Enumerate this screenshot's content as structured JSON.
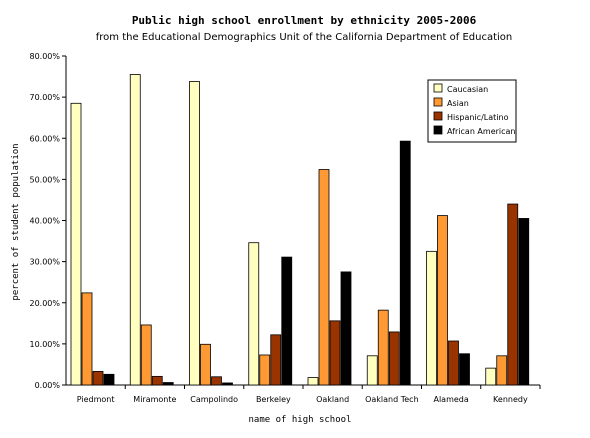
{
  "chart_data": {
    "type": "bar",
    "title": "Public high school enrollment by ethnicity 2005-2006",
    "subtitle": "from the Educational Demographics Unit of the California Department of Education",
    "xlabel": "name of high school",
    "ylabel": "percent of student population",
    "ylim": [
      0,
      80
    ],
    "yticks": [
      "0.00%",
      "10.00%",
      "20.00%",
      "30.00%",
      "40.00%",
      "50.00%",
      "60.00%",
      "70.00%",
      "80.00%"
    ],
    "grid": false,
    "legend_position": "top-right",
    "categories": [
      "Piedmont",
      "Miramonte",
      "Campolindo",
      "Berkeley",
      "Oakland",
      "Oakland Tech",
      "Alameda",
      "Kennedy"
    ],
    "series": [
      {
        "name": "Caucasian",
        "color": "#ffffc0",
        "values": [
          68.5,
          75.5,
          73.8,
          34.6,
          1.8,
          7.1,
          32.5,
          4.1
        ]
      },
      {
        "name": "Asian",
        "color": "#ff9933",
        "values": [
          22.4,
          14.6,
          9.9,
          7.3,
          52.4,
          18.2,
          41.2,
          7.1
        ]
      },
      {
        "name": "Hispanic/Latino",
        "color": "#993300",
        "values": [
          3.3,
          2.1,
          2.0,
          12.2,
          15.6,
          12.9,
          10.7,
          44.0
        ]
      },
      {
        "name": "African American",
        "color": "#000000",
        "values": [
          2.6,
          0.6,
          0.5,
          31.1,
          27.5,
          59.3,
          7.6,
          40.5
        ]
      }
    ]
  }
}
